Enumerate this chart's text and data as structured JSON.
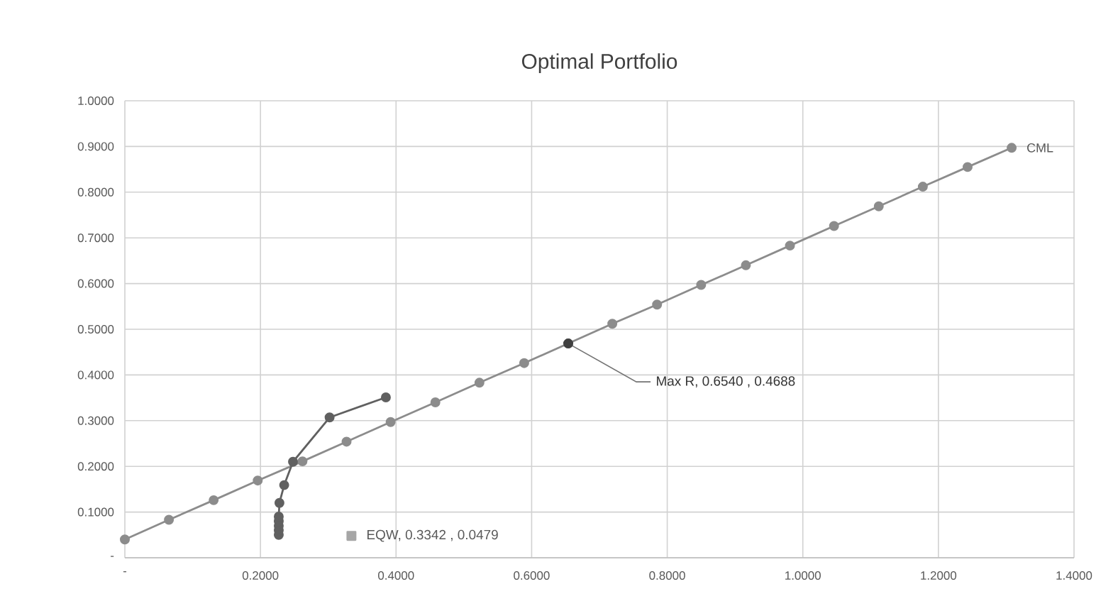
{
  "chart_data": {
    "type": "line",
    "title": "Optimal Portfolio",
    "xlim": [
      0,
      1.4
    ],
    "ylim": [
      0,
      1.0
    ],
    "xticks": [
      {
        "value": 0,
        "label": "-"
      },
      {
        "value": 0.2,
        "label": "0.2000"
      },
      {
        "value": 0.4,
        "label": "0.4000"
      },
      {
        "value": 0.6,
        "label": "0.6000"
      },
      {
        "value": 0.8,
        "label": "0.8000"
      },
      {
        "value": 1.0,
        "label": "1.0000"
      },
      {
        "value": 1.2,
        "label": "1.2000"
      },
      {
        "value": 1.4,
        "label": "1.4000"
      }
    ],
    "yticks": [
      {
        "value": 0,
        "label": "-"
      },
      {
        "value": 0.1,
        "label": "0.1000"
      },
      {
        "value": 0.2,
        "label": "0.2000"
      },
      {
        "value": 0.3,
        "label": "0.3000"
      },
      {
        "value": 0.4,
        "label": "0.4000"
      },
      {
        "value": 0.5,
        "label": "0.5000"
      },
      {
        "value": 0.6,
        "label": "0.6000"
      },
      {
        "value": 0.7,
        "label": "0.7000"
      },
      {
        "value": 0.8,
        "label": "0.8000"
      },
      {
        "value": 0.9,
        "label": "0.9000"
      },
      {
        "value": 1.0,
        "label": "1.0000"
      }
    ],
    "grid": true,
    "legend": false,
    "marker": "circle",
    "series": [
      {
        "name": "CML",
        "type": "line",
        "color": "#8c8c8c",
        "x": [
          0,
          0.065,
          0.131,
          0.196,
          0.262,
          0.327,
          0.392,
          0.458,
          0.523,
          0.589,
          0.654,
          0.719,
          0.785,
          0.85,
          0.916,
          0.981,
          1.046,
          1.112,
          1.177,
          1.243,
          1.308
        ],
        "values": [
          0.04,
          0.083,
          0.126,
          0.169,
          0.211,
          0.254,
          0.297,
          0.34,
          0.383,
          0.426,
          0.4688,
          0.512,
          0.554,
          0.597,
          0.64,
          0.683,
          0.726,
          0.769,
          0.812,
          0.855,
          0.897
        ]
      },
      {
        "type": "line",
        "color": "#606060",
        "x": [
          0.227,
          0.227,
          0.227,
          0.227,
          0.227,
          0.228,
          0.235,
          0.248,
          0.302,
          0.385
        ],
        "values": [
          0.05,
          0.06,
          0.07,
          0.08,
          0.09,
          0.12,
          0.159,
          0.21,
          0.307,
          0.351
        ]
      },
      {
        "type": "scatter",
        "color": "#404040",
        "x": [
          0.654
        ],
        "values": [
          0.4688
        ]
      },
      {
        "type": "scatter",
        "marker": "square",
        "color": "#a6a6a6",
        "x": [
          0.3342
        ],
        "values": [
          0.0479
        ]
      }
    ],
    "annotations": [
      {
        "text": "Max R, 0.6540 , 0.4688",
        "x": 0.654,
        "y": 0.4688
      },
      {
        "text": "EQW, 0.3342 , 0.0479",
        "x": 0.3342,
        "y": 0.0479
      }
    ]
  }
}
